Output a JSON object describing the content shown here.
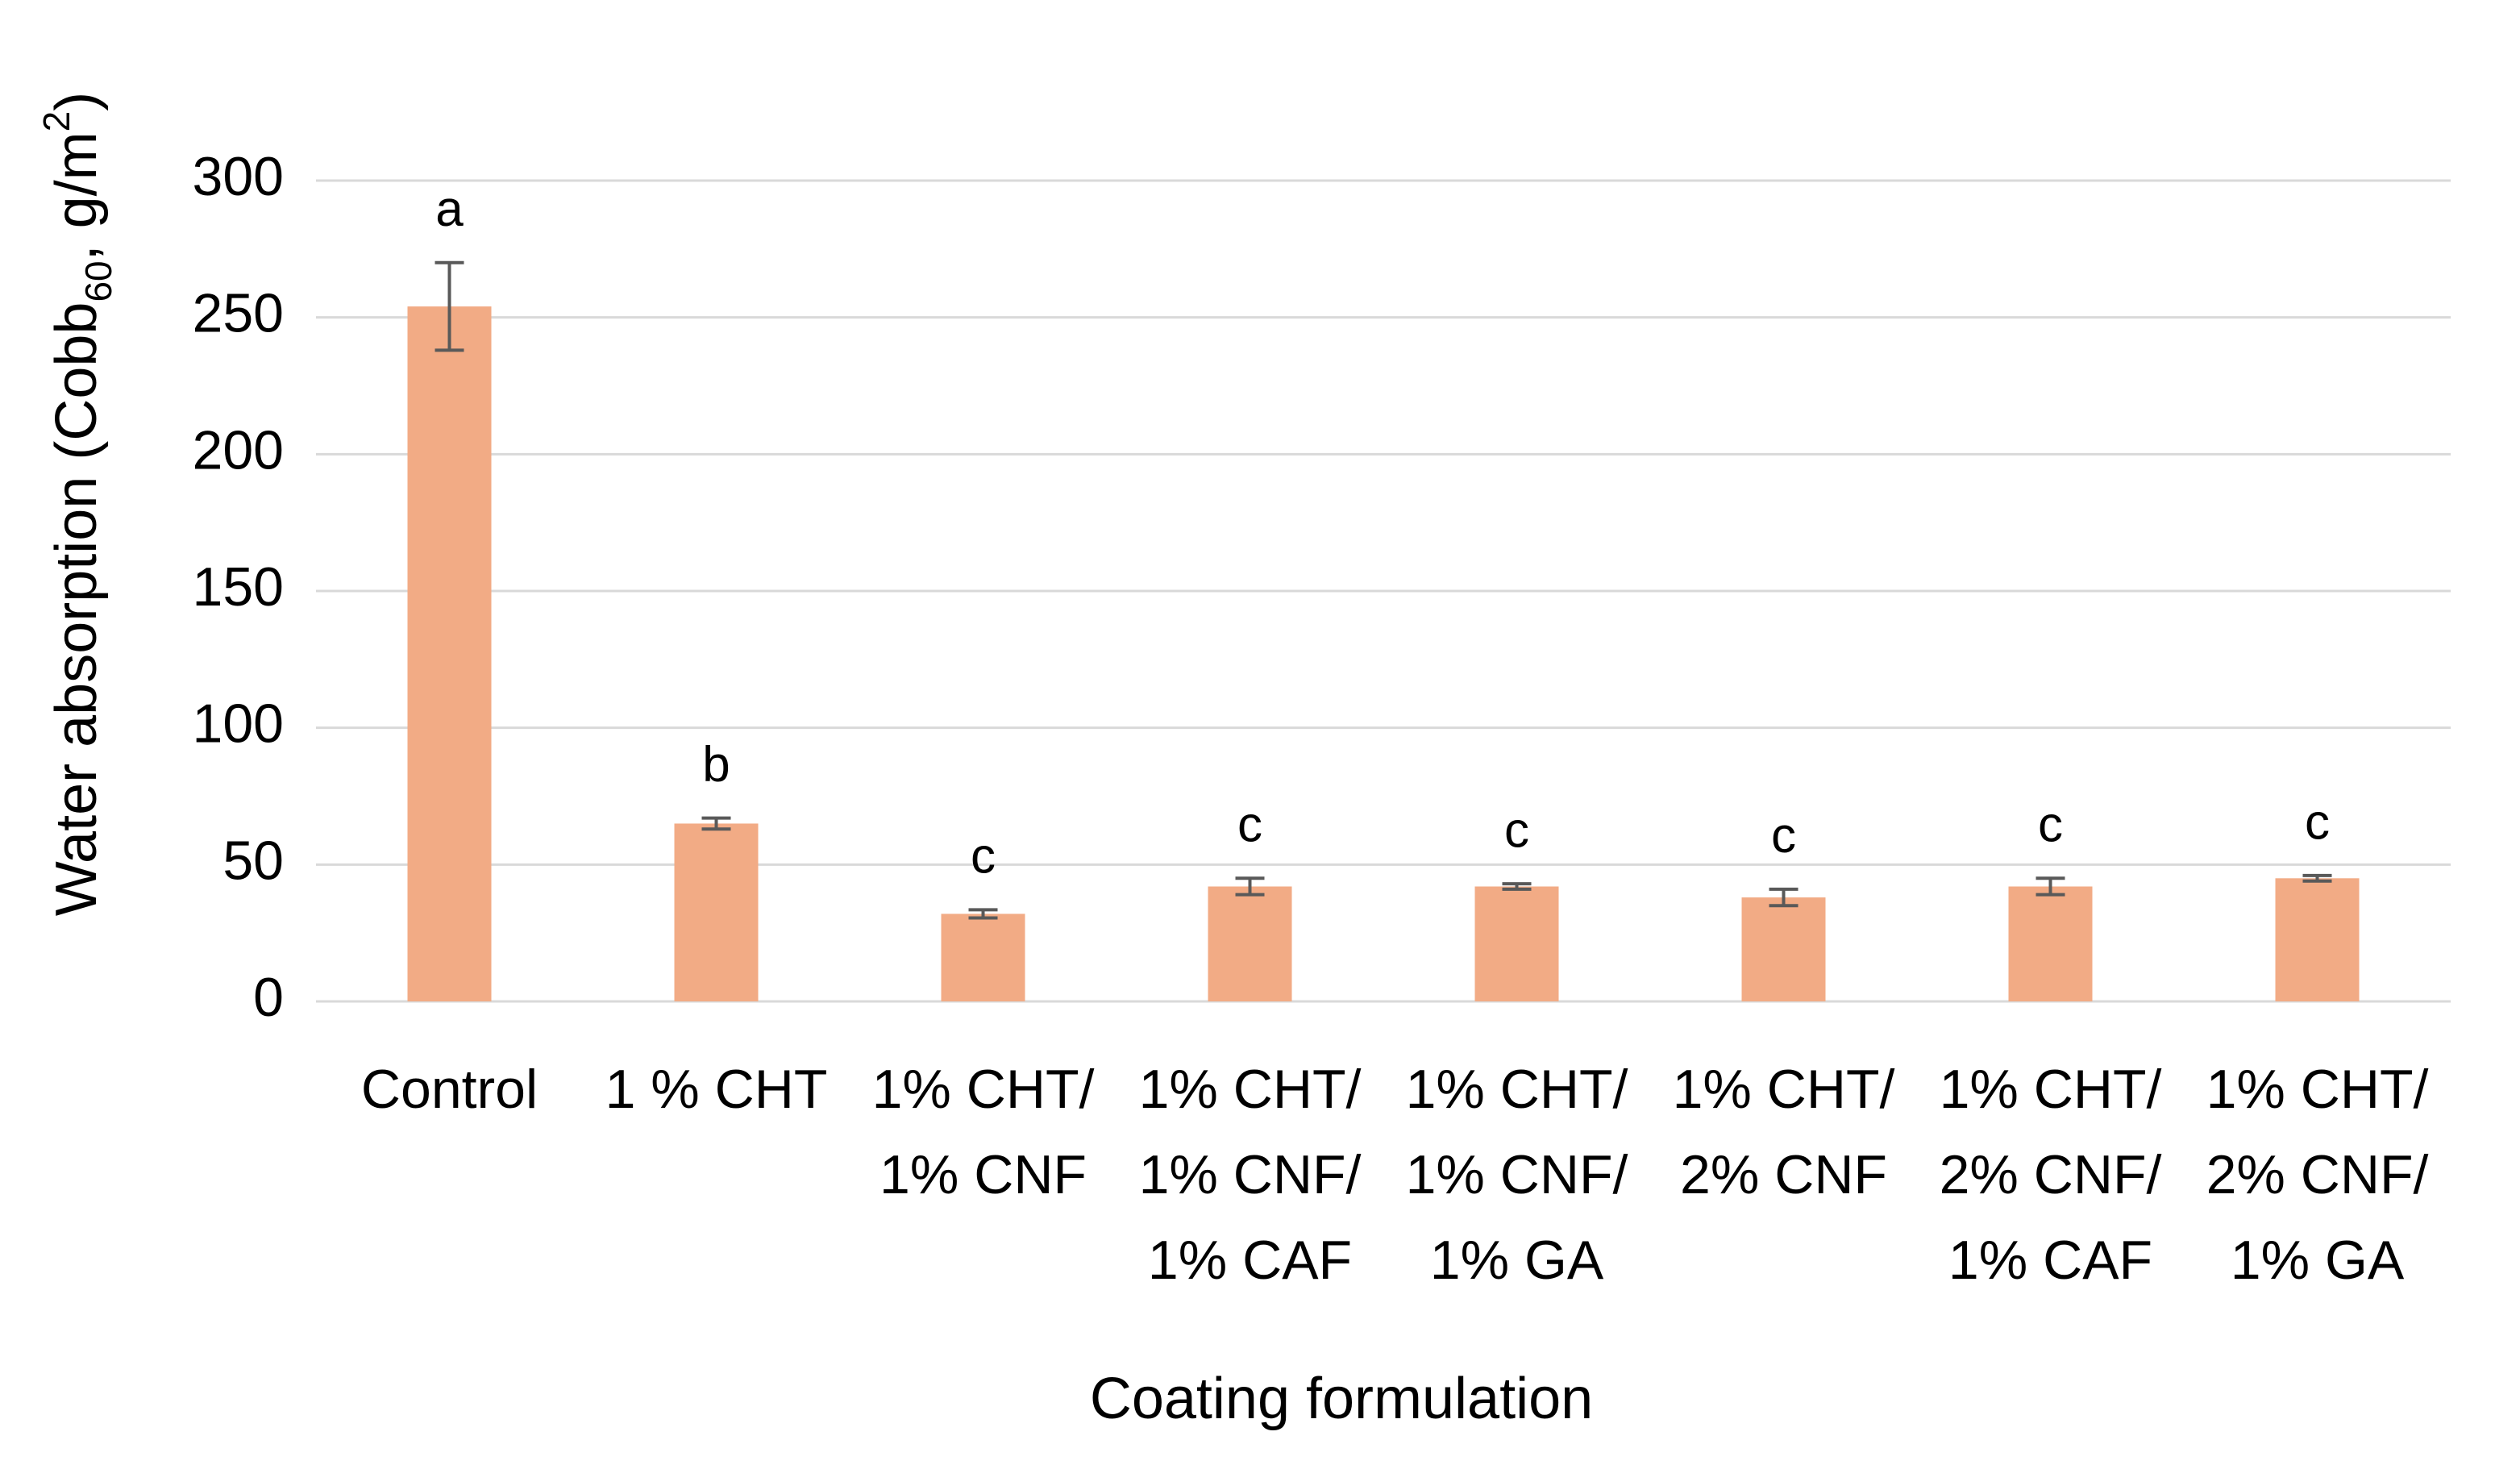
{
  "chart_data": {
    "type": "bar",
    "y_label": [
      "Water absorption (Cobb",
      "60",
      ", g/m",
      "2",
      ")"
    ],
    "x_label": "Coating formulation",
    "categories": [
      [
        "Control"
      ],
      [
        "1 % CHT"
      ],
      [
        "1% CHT/",
        "1% CNF"
      ],
      [
        "1% CHT/",
        "1% CNF/",
        "1% CAF"
      ],
      [
        "1% CHT/",
        "1% CNF/",
        "1% GA"
      ],
      [
        "1% CHT/",
        "2% CNF"
      ],
      [
        "1% CHT/",
        "2% CNF/",
        "1% CAF"
      ],
      [
        "1% CHT/",
        "2% CNF/",
        "1% GA"
      ]
    ],
    "values": [
      254,
      65,
      32,
      42,
      42,
      38,
      42,
      45
    ],
    "errors": [
      16,
      2,
      1.5,
      3,
      1,
      3,
      3,
      1
    ],
    "annotations": [
      "a",
      "b",
      "c",
      "c",
      "c",
      "c",
      "c",
      "c"
    ],
    "color": "#f2ab85",
    "ylim": [
      0,
      300
    ],
    "yticks": [
      0,
      50,
      100,
      150,
      200,
      250,
      300
    ],
    "grid": true
  }
}
